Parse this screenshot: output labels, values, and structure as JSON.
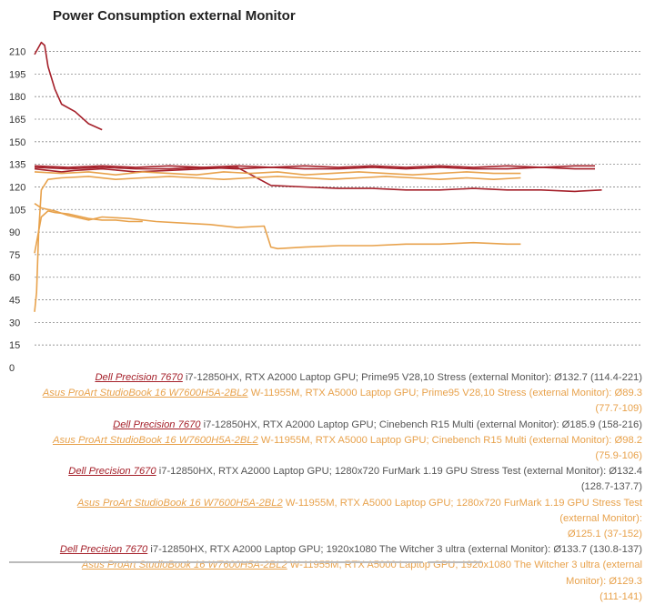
{
  "chart_data": {
    "type": "line",
    "title": "Power Consumption external Monitor",
    "xlabel": "",
    "ylabel": "",
    "ylim": [
      0,
      220
    ],
    "yticks": [
      0,
      15,
      30,
      45,
      60,
      75,
      90,
      105,
      120,
      135,
      150,
      165,
      180,
      195,
      210
    ],
    "grid": true,
    "colors": {
      "dark": "#a5202a",
      "orange": "#e8a24c"
    },
    "series": [
      {
        "id": "dell-prime95",
        "color": "dark",
        "device": "Dell Precision 7670",
        "spec": "i7-12850HX, RTX A2000 Laptop GPU; Prime95 V28,10 Stress (external Monitor): Ø132.7 (114.4-221)",
        "x": [
          0,
          2,
          4,
          6,
          10,
          15,
          20,
          25,
          30,
          35,
          40,
          45,
          50,
          55,
          60,
          65,
          70,
          75,
          80,
          84
        ],
        "values": [
          132,
          131,
          130,
          131,
          132,
          130,
          131,
          132,
          133,
          121,
          120,
          119,
          119,
          118,
          118,
          119,
          118,
          118,
          117,
          118
        ]
      },
      {
        "id": "asus-prime95",
        "color": "orange",
        "device": "Asus ProArt StudioBook 16 W7600H5A-2BL2",
        "spec": "W-11955M, RTX A5000 Laptop GPU; Prime95 V28,10 Stress (external Monitor): Ø89.3 (77.7-109)",
        "x": [
          0,
          1,
          3,
          5,
          8,
          10,
          14,
          18,
          22,
          26,
          30,
          34,
          35,
          36,
          40,
          45,
          50,
          55,
          60,
          65,
          70,
          72
        ],
        "values": [
          109,
          106,
          104,
          101,
          98,
          100,
          99,
          97,
          96,
          95,
          93,
          94,
          80,
          79,
          80,
          81,
          81,
          82,
          82,
          83,
          82,
          82
        ]
      },
      {
        "id": "dell-cinebench",
        "color": "dark",
        "device": "Dell Precision 7670",
        "spec": "i7-12850HX, RTX A2000 Laptop GPU; Cinebench R15 Multi (external Monitor): Ø185.9 (158-216)",
        "x": [
          0,
          0.5,
          1,
          1.5,
          2,
          3,
          4,
          6,
          8,
          10
        ],
        "values": [
          208,
          212,
          216,
          214,
          200,
          185,
          175,
          170,
          162,
          158
        ]
      },
      {
        "id": "asus-cinebench",
        "color": "orange",
        "device": "Asus ProArt StudioBook 16 W7600H5A-2BL2",
        "spec": "W-11955M, RTX A5000 Laptop GPU; Cinebench R15 Multi (external Monitor): Ø98.2 (75.9-106)",
        "x": [
          0,
          1,
          2,
          3,
          5,
          8,
          10,
          12,
          14,
          16
        ],
        "values": [
          76,
          100,
          104,
          103,
          102,
          99,
          98,
          98,
          97,
          97
        ]
      },
      {
        "id": "dell-furmark",
        "color": "dark",
        "device": "Dell Precision 7670",
        "spec": "i7-12850HX, RTX A2000 Laptop GPU; 1280x720 FurMark 1.19 GPU Stress Test (external Monitor): Ø132.4 (128.7-137.7)",
        "x": [
          0,
          5,
          10,
          15,
          20,
          25,
          30,
          35,
          40,
          45,
          50,
          55,
          60,
          65,
          70,
          75,
          80,
          83
        ],
        "values": [
          133,
          132,
          133,
          132,
          132,
          133,
          132,
          133,
          132,
          132,
          133,
          132,
          133,
          132,
          132,
          133,
          132,
          132
        ]
      },
      {
        "id": "asus-furmark",
        "color": "orange",
        "device": "Asus ProArt StudioBook 16 W7600H5A-2BL2",
        "spec": "W-11955M, RTX A5000 Laptop GPU; 1280x720 FurMark 1.19 GPU Stress Test (external Monitor):",
        "avg": "Ø125.1 (37-152)",
        "x": [
          0,
          0.3,
          0.6,
          1,
          2,
          4,
          8,
          12,
          16,
          20,
          24,
          28,
          32,
          36,
          40,
          44,
          48,
          52,
          56,
          60,
          64,
          68,
          72
        ],
        "values": [
          37,
          50,
          90,
          118,
          125,
          126,
          127,
          125,
          126,
          127,
          126,
          125,
          126,
          127,
          126,
          125,
          126,
          127,
          126,
          125,
          126,
          125,
          126
        ]
      },
      {
        "id": "dell-witcher",
        "color": "dark",
        "device": "Dell Precision 7670",
        "spec": "i7-12850HX, RTX A2000 Laptop GPU; 1920x1080 The Witcher 3 ultra (external Monitor): Ø133.7 (130.8-137)",
        "x": [
          0,
          5,
          10,
          15,
          20,
          25,
          30,
          35,
          40,
          45,
          50,
          55,
          60,
          65,
          70,
          75,
          80,
          83
        ],
        "values": [
          134,
          133,
          134,
          133,
          134,
          133,
          134,
          133,
          134,
          133,
          134,
          133,
          134,
          133,
          134,
          133,
          134,
          134
        ]
      },
      {
        "id": "asus-witcher",
        "color": "orange",
        "device": "Asus ProArt StudioBook 16 W7600H5A-2BL2",
        "spec": "W-11955M, RTX A5000 Laptop GPU; 1920x1080 The Witcher 3 ultra (external Monitor): Ø129.3",
        "avg": "(111-141)",
        "x": [
          0,
          4,
          8,
          12,
          16,
          20,
          24,
          28,
          32,
          36,
          40,
          44,
          48,
          52,
          56,
          60,
          64,
          68,
          72
        ],
        "values": [
          130,
          129,
          130,
          128,
          130,
          129,
          128,
          130,
          129,
          130,
          128,
          129,
          130,
          129,
          128,
          129,
          130,
          129,
          129
        ]
      }
    ]
  }
}
